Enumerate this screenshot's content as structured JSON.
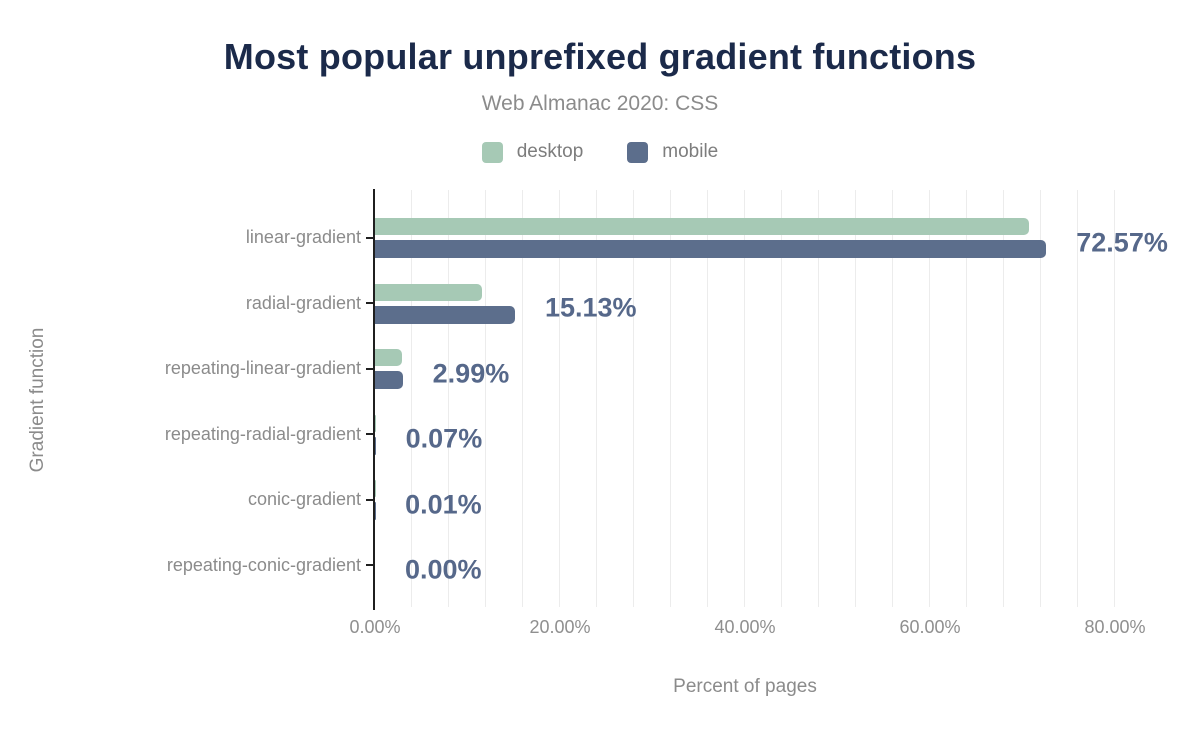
{
  "header": {
    "title": "Most popular unprefixed gradient functions",
    "subtitle": "Web Almanac 2020: CSS"
  },
  "axes": {
    "x_title": "Percent of pages",
    "y_title": "Gradient function"
  },
  "colors": {
    "background": "#ffffff",
    "title": "#1b2a4a",
    "text_gray": "#8b8b8b",
    "desktop": "#a6c9b5",
    "mobile": "#5c6e8c",
    "value_label": "#56688a",
    "gridline": "#ececec",
    "axis": "#1f1f1f"
  },
  "chart_data": {
    "type": "bar",
    "orientation": "horizontal",
    "title": "Most popular unprefixed gradient functions",
    "subtitle": "Web Almanac 2020: CSS",
    "xlabel": "Percent of pages",
    "ylabel": "Gradient function",
    "xlim": [
      0,
      80
    ],
    "x_ticks": [
      {
        "value": 0,
        "label": "0.00%"
      },
      {
        "value": 20,
        "label": "20.00%"
      },
      {
        "value": 40,
        "label": "40.00%"
      },
      {
        "value": 60,
        "label": "60.00%"
      },
      {
        "value": 80,
        "label": "80.00%"
      }
    ],
    "grid_minor_step": 4,
    "legend_position": "top",
    "categories": [
      "linear-gradient",
      "radial-gradient",
      "repeating-linear-gradient",
      "repeating-radial-gradient",
      "conic-gradient",
      "repeating-conic-gradient"
    ],
    "series": [
      {
        "name": "desktop",
        "color": "#a6c9b5",
        "values": [
          70.7,
          11.6,
          2.9,
          0.06,
          0.01,
          0.0
        ]
      },
      {
        "name": "mobile",
        "color": "#5c6e8c",
        "values": [
          72.57,
          15.13,
          2.99,
          0.07,
          0.01,
          0.0
        ]
      }
    ],
    "value_labels": [
      "72.57%",
      "15.13%",
      "2.99%",
      "0.07%",
      "0.01%",
      "0.00%"
    ]
  }
}
